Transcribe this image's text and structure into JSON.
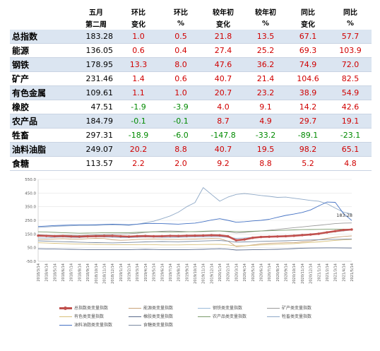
{
  "table": {
    "headers_row1": [
      "",
      "五月",
      "环比",
      "环比",
      "较年初",
      "较年初",
      "同比",
      "同比"
    ],
    "headers_row2": [
      "",
      "第二周",
      "变化",
      "%",
      "变化",
      "%",
      "变化",
      "%"
    ],
    "rows": [
      {
        "name": "总指数",
        "value": "183.28",
        "wow": "1.0",
        "wow_pct": "0.5",
        "ytd": "21.8",
        "ytd_pct": "13.5",
        "yoy": "67.1",
        "yoy_pct": "57.7"
      },
      {
        "name": "能源",
        "value": "136.05",
        "wow": "0.6",
        "wow_pct": "0.4",
        "ytd": "27.4",
        "ytd_pct": "25.2",
        "yoy": "69.3",
        "yoy_pct": "103.9"
      },
      {
        "name": "钢铁",
        "value": "178.95",
        "wow": "13.3",
        "wow_pct": "8.0",
        "ytd": "47.6",
        "ytd_pct": "36.2",
        "yoy": "74.9",
        "yoy_pct": "72.0"
      },
      {
        "name": "矿产",
        "value": "231.46",
        "wow": "1.4",
        "wow_pct": "0.6",
        "ytd": "40.7",
        "ytd_pct": "21.4",
        "yoy": "104.6",
        "yoy_pct": "82.5"
      },
      {
        "name": "有色金属",
        "value": "109.61",
        "wow": "1.1",
        "wow_pct": "1.0",
        "ytd": "20.7",
        "ytd_pct": "23.2",
        "yoy": "38.9",
        "yoy_pct": "54.9"
      },
      {
        "name": "橡胶",
        "value": "47.51",
        "wow": "-1.9",
        "wow_pct": "-3.9",
        "ytd": "4.0",
        "ytd_pct": "9.1",
        "yoy": "14.2",
        "yoy_pct": "42.6"
      },
      {
        "name": "农产品",
        "value": "184.79",
        "wow": "-0.1",
        "wow_pct": "-0.1",
        "ytd": "8.7",
        "ytd_pct": "4.9",
        "yoy": "29.7",
        "yoy_pct": "19.1"
      },
      {
        "name": "牲畜",
        "value": "297.31",
        "wow": "-18.9",
        "wow_pct": "-6.0",
        "ytd": "-147.8",
        "ytd_pct": "-33.2",
        "yoy": "-89.1",
        "yoy_pct": "-23.1"
      },
      {
        "name": "油料油脂",
        "value": "249.07",
        "wow": "20.2",
        "wow_pct": "8.8",
        "ytd": "40.7",
        "ytd_pct": "19.5",
        "yoy": "98.2",
        "yoy_pct": "65.1"
      },
      {
        "name": "食糖",
        "value": "113.57",
        "wow": "2.2",
        "wow_pct": "2.0",
        "ytd": "9.2",
        "ytd_pct": "8.8",
        "yoy": "5.2",
        "yoy_pct": "4.8"
      }
    ]
  },
  "colors": {
    "positive": "#d00000",
    "negative": "#008a00",
    "band": "#dbe5f1"
  },
  "chart_data": {
    "type": "line",
    "ylim": [
      -50,
      550
    ],
    "yticks": [
      -50,
      50,
      150,
      250,
      350,
      450,
      550
    ],
    "ytick_labels": [
      "-50.0",
      "50.0",
      "150.0",
      "250.0",
      "350.0",
      "450.0",
      "550.0"
    ],
    "x": [
      "2018/3/14",
      "2018/4/14",
      "2018/5/14",
      "2018/6/14",
      "2018/7/14",
      "2018/8/14",
      "2018/9/14",
      "2018/10/14",
      "2018/11/14",
      "2018/12/14",
      "2019/1/14",
      "2019/2/14",
      "2019/3/14",
      "2019/4/14",
      "2019/5/14",
      "2019/6/14",
      "2019/7/14",
      "2019/8/14",
      "2019/9/14",
      "2019/10/14",
      "2019/11/14",
      "2019/12/14",
      "2020/1/14",
      "2020/2/14",
      "2020/3/14",
      "2020/4/14",
      "2020/5/14",
      "2020/6/14",
      "2020/7/14",
      "2020/8/14",
      "2020/9/14",
      "2020/10/14",
      "2020/11/14",
      "2020/12/14",
      "2021/1/14",
      "2021/2/14",
      "2021/3/14",
      "2021/4/14",
      "2021/5/14"
    ],
    "end_label": "183.28",
    "series": [
      {
        "name": "总指数类变量指数",
        "color": "#c0504d",
        "main": true,
        "values": [
          138,
          136,
          134,
          135,
          132,
          131,
          133,
          134,
          135,
          136,
          133,
          131,
          134,
          135,
          133,
          134,
          136,
          135,
          137,
          138,
          139,
          141,
          140,
          133,
          104,
          110,
          122,
          128,
          130,
          132,
          134,
          137,
          142,
          146,
          152,
          162,
          171,
          179,
          183
        ]
      },
      {
        "name": "能源类变量指数",
        "color": "#c9a27a",
        "values": [
          112,
          110,
          114,
          116,
          113,
          112,
          116,
          118,
          117,
          108,
          104,
          106,
          110,
          112,
          114,
          112,
          111,
          110,
          112,
          113,
          115,
          117,
          116,
          98,
          58,
          62,
          70,
          78,
          82,
          84,
          86,
          86,
          92,
          98,
          108,
          118,
          126,
          132,
          136
        ]
      },
      {
        "name": "钢铁类变量指数",
        "color": "#9bbbd9",
        "values": [
          122,
          120,
          126,
          128,
          125,
          124,
          128,
          130,
          128,
          126,
          124,
          123,
          126,
          128,
          127,
          126,
          125,
          126,
          127,
          128,
          129,
          130,
          130,
          126,
          118,
          121,
          126,
          128,
          132,
          136,
          138,
          140,
          144,
          148,
          152,
          158,
          166,
          172,
          179
        ]
      },
      {
        "name": "矿产类变量指数",
        "color": "#9b9b9b",
        "values": [
          145,
          142,
          140,
          142,
          141,
          140,
          142,
          144,
          146,
          148,
          150,
          152,
          156,
          162,
          166,
          170,
          172,
          170,
          168,
          166,
          168,
          170,
          172,
          166,
          158,
          162,
          168,
          172,
          178,
          184,
          190,
          196,
          202,
          208,
          214,
          220,
          226,
          230,
          231
        ]
      },
      {
        "name": "有色类变量指数",
        "color": "#d8c07a",
        "values": [
          86,
          84,
          82,
          80,
          78,
          76,
          75,
          74,
          73,
          72,
          72,
          71,
          72,
          73,
          72,
          70,
          70,
          70,
          71,
          72,
          73,
          74,
          74,
          70,
          62,
          64,
          67,
          70,
          72,
          75,
          78,
          80,
          84,
          88,
          92,
          98,
          103,
          107,
          110
        ]
      },
      {
        "name": "橡胶类变量指数",
        "color": "#5a6a8a",
        "values": [
          42,
          41,
          40,
          39,
          38,
          37,
          36,
          36,
          35,
          35,
          35,
          36,
          37,
          38,
          37,
          36,
          36,
          36,
          36,
          37,
          38,
          40,
          42,
          39,
          33,
          34,
          35,
          36,
          37,
          38,
          40,
          43,
          46,
          47,
          48,
          49,
          49,
          48,
          47
        ]
      },
      {
        "name": "农产品类变量指数",
        "color": "#7a9a6a",
        "values": [
          166,
          164,
          162,
          160,
          158,
          156,
          157,
          158,
          160,
          160,
          160,
          160,
          162,
          164,
          166,
          165,
          164,
          164,
          166,
          168,
          170,
          172,
          172,
          170,
          168,
          168,
          170,
          172,
          174,
          176,
          178,
          180,
          182,
          183,
          184,
          185,
          185,
          185,
          185
        ]
      },
      {
        "name": "牲畜类变量指数",
        "color": "#8fa9c7",
        "values": [
          198,
          202,
          206,
          208,
          210,
          212,
          212,
          214,
          216,
          218,
          216,
          214,
          222,
          232,
          244,
          262,
          282,
          310,
          350,
          380,
          490,
          440,
          390,
          420,
          440,
          446,
          440,
          432,
          426,
          418,
          420,
          412,
          404,
          396,
          390,
          372,
          340,
          310,
          297
        ]
      },
      {
        "name": "油料油脂类变量指数",
        "color": "#4472c4",
        "values": [
          205,
          208,
          212,
          214,
          216,
          218,
          218,
          218,
          220,
          222,
          220,
          218,
          222,
          226,
          228,
          226,
          224,
          222,
          226,
          230,
          240,
          252,
          262,
          250,
          236,
          240,
          246,
          250,
          258,
          272,
          286,
          296,
          308,
          326,
          356,
          384,
          382,
          300,
          249
        ]
      },
      {
        "name": "食糖类变量指数",
        "color": "#7a8aa0",
        "values": [
          100,
          98,
          96,
          94,
          92,
          90,
          88,
          87,
          86,
          85,
          86,
          88,
          90,
          92,
          94,
          95,
          94,
          93,
          95,
          97,
          99,
          101,
          102,
          98,
          90,
          92,
          94,
          96,
          98,
          99,
          100,
          102,
          104,
          106,
          108,
          110,
          111,
          112,
          114
        ]
      }
    ]
  }
}
